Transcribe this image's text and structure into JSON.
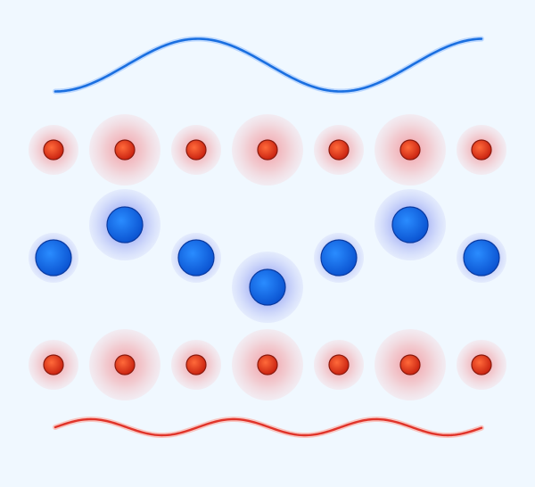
{
  "diagram": {
    "background": "#f0f8ff",
    "colors": {
      "wave_top": "#1a6fe0",
      "wave_bottom": "#e0342a",
      "red_core": "#e0301e",
      "red_core_edge": "#8a1a0e",
      "red_halo": "#f0a3a8",
      "blue_core": "#1266ea",
      "blue_core_edge": "#0a3aa0",
      "blue_halo": "#7f8ff0"
    },
    "top_row": [
      {
        "halo": "small"
      },
      {
        "halo": "large"
      },
      {
        "halo": "small"
      },
      {
        "halo": "large"
      },
      {
        "halo": "small"
      },
      {
        "halo": "large"
      },
      {
        "halo": "small"
      }
    ],
    "middle_row": [
      {
        "level": "low",
        "halo": "small"
      },
      {
        "level": "high",
        "halo": "large"
      },
      {
        "level": "low",
        "halo": "small"
      },
      {
        "level": "lowest",
        "halo": "large"
      },
      {
        "level": "low",
        "halo": "small"
      },
      {
        "level": "high",
        "halo": "large"
      },
      {
        "level": "low",
        "halo": "small"
      }
    ],
    "bottom_row": [
      {
        "halo": "small"
      },
      {
        "halo": "large"
      },
      {
        "halo": "small"
      },
      {
        "halo": "large"
      },
      {
        "halo": "small"
      },
      {
        "halo": "large"
      },
      {
        "halo": "small"
      }
    ]
  }
}
